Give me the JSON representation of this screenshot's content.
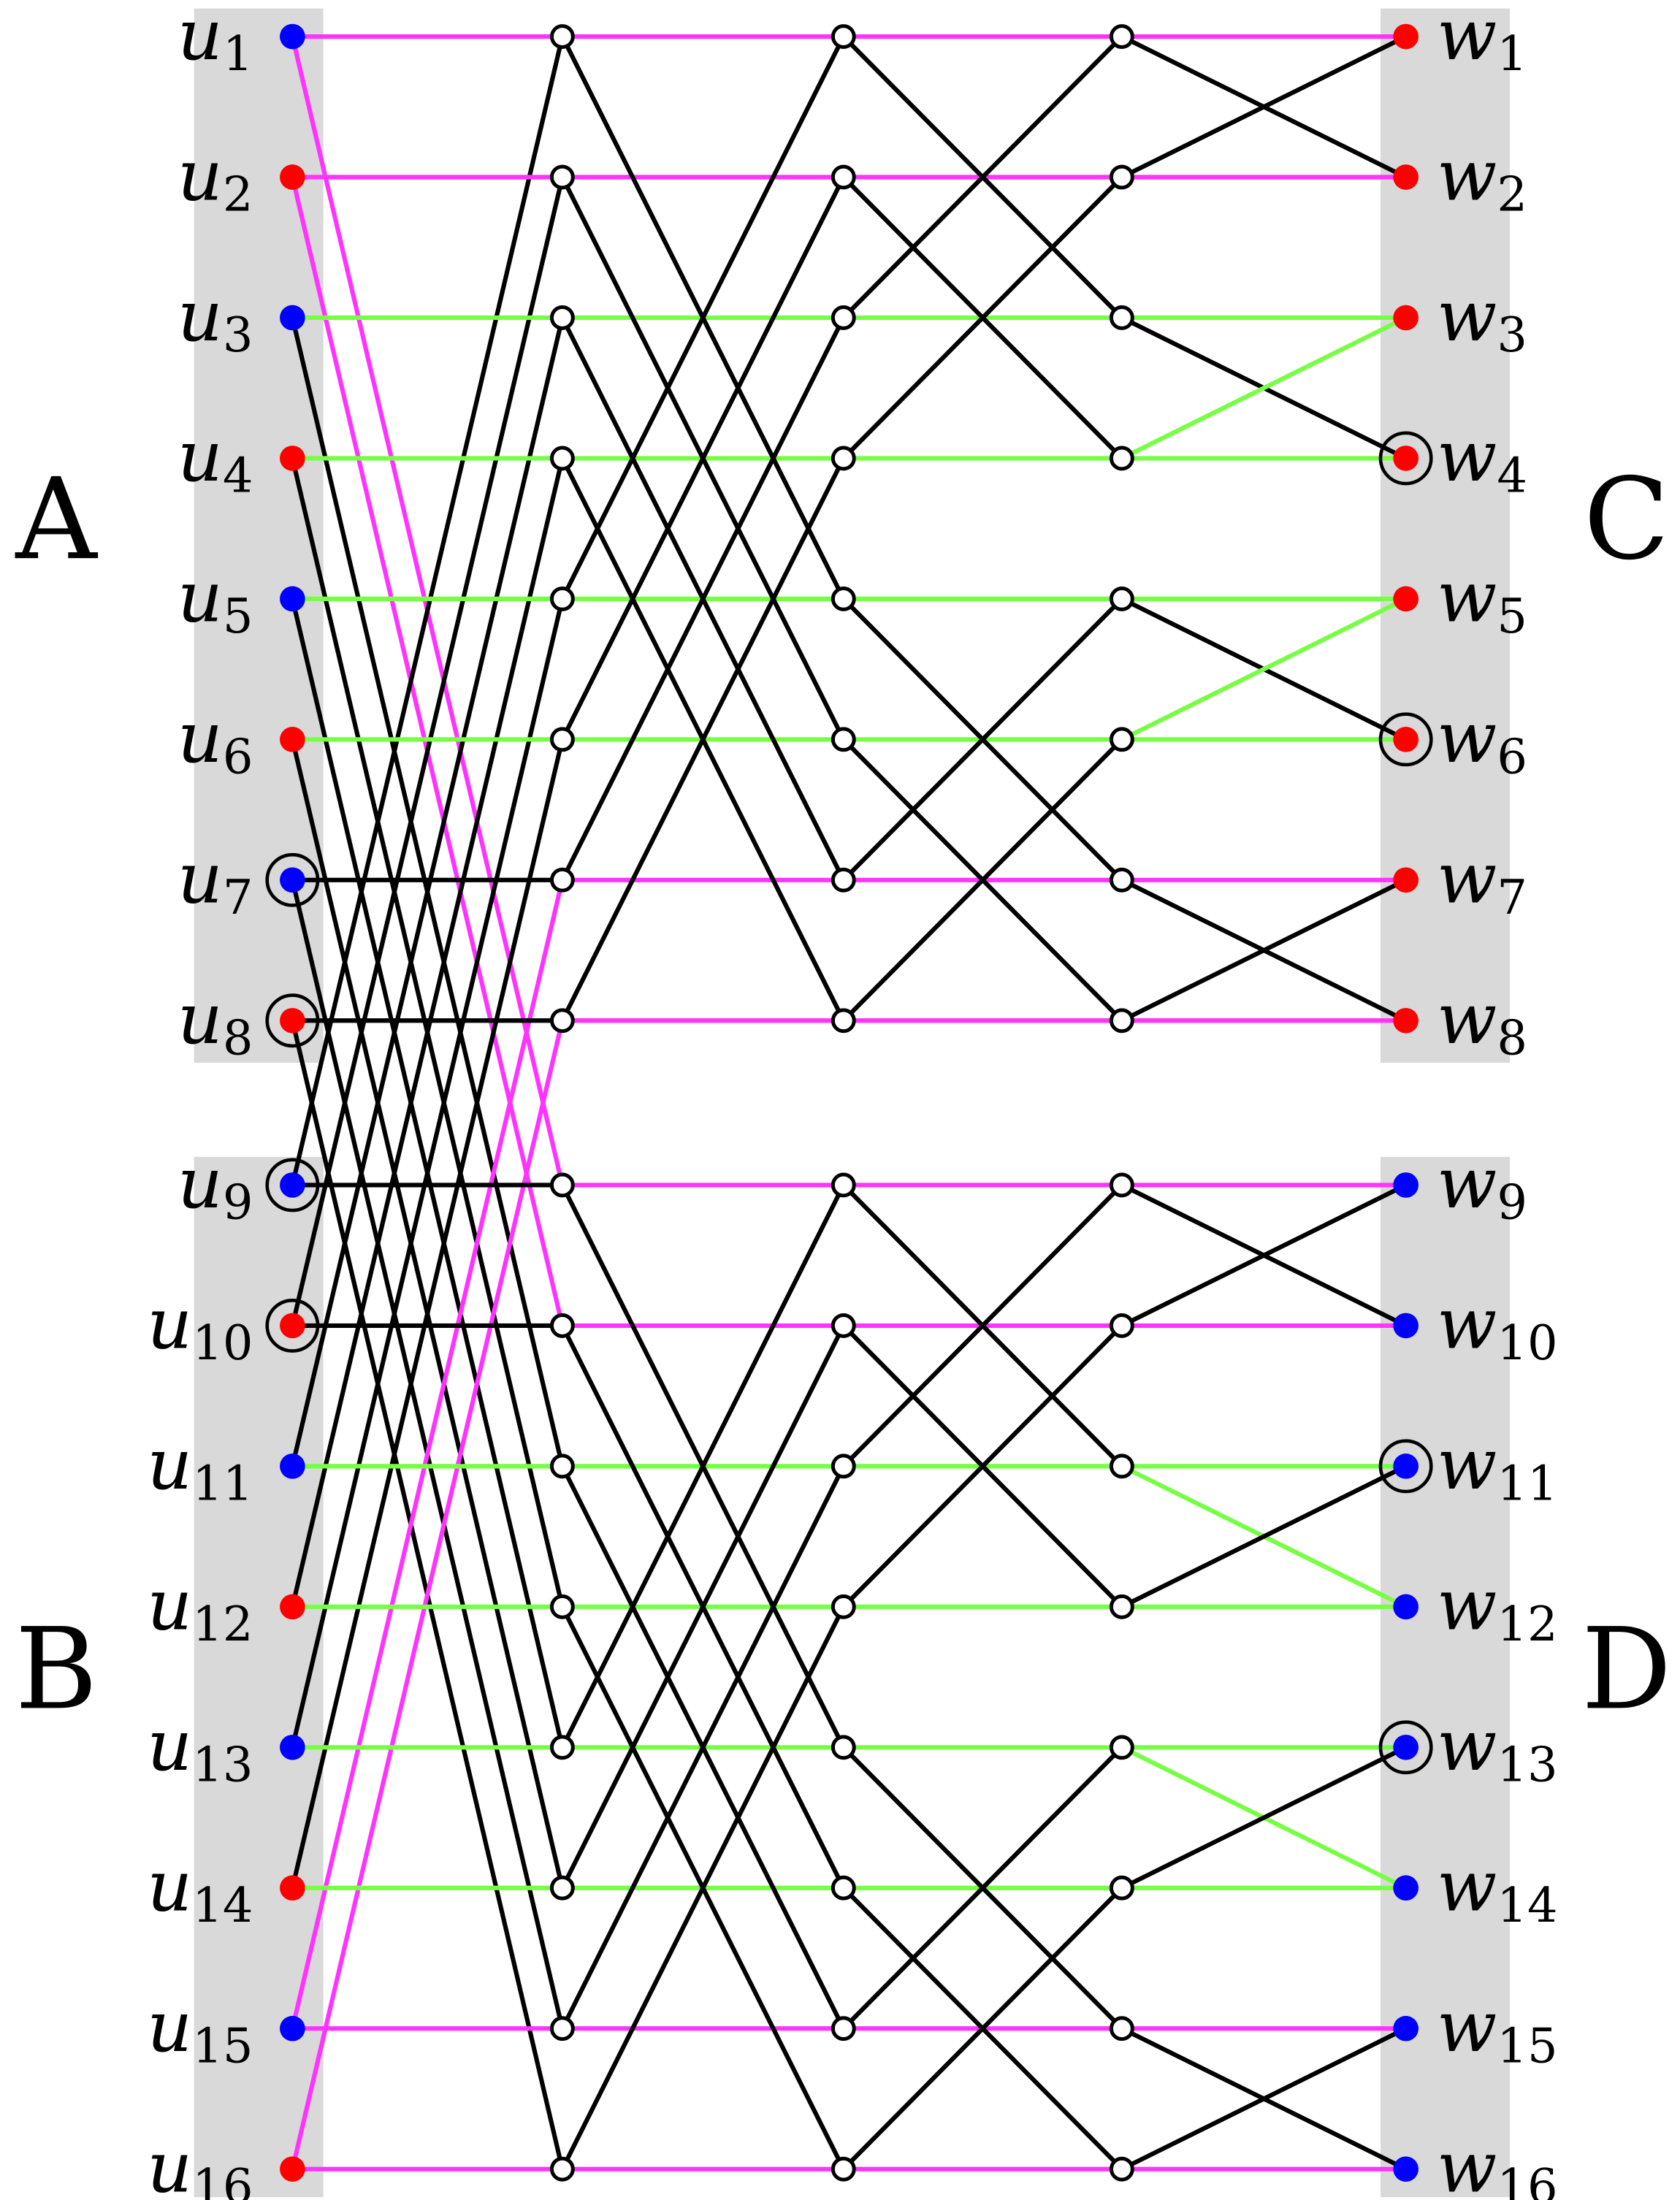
{
  "colors": {
    "panel": "#d9d9d9",
    "magenta_edge": "#ff33ff",
    "green_edge": "#77ff44",
    "black_edge": "#000000",
    "red_node": "#ff0000",
    "blue_node": "#0000ff",
    "hollow_node_fill": "#ffffff"
  },
  "groups": {
    "A": "A",
    "B": "B",
    "C": "C",
    "D": "D"
  },
  "left_nodes": [
    {
      "base": "u",
      "sub": "1",
      "color": "blue",
      "ringed": false
    },
    {
      "base": "u",
      "sub": "2",
      "color": "red",
      "ringed": false
    },
    {
      "base": "u",
      "sub": "3",
      "color": "blue",
      "ringed": false
    },
    {
      "base": "u",
      "sub": "4",
      "color": "red",
      "ringed": false
    },
    {
      "base": "u",
      "sub": "5",
      "color": "blue",
      "ringed": false
    },
    {
      "base": "u",
      "sub": "6",
      "color": "red",
      "ringed": false
    },
    {
      "base": "u",
      "sub": "7",
      "color": "blue",
      "ringed": true
    },
    {
      "base": "u",
      "sub": "8",
      "color": "red",
      "ringed": true
    },
    {
      "base": "u",
      "sub": "9",
      "color": "blue",
      "ringed": true
    },
    {
      "base": "u",
      "sub": "10",
      "color": "red",
      "ringed": true
    },
    {
      "base": "u",
      "sub": "11",
      "color": "blue",
      "ringed": false
    },
    {
      "base": "u",
      "sub": "12",
      "color": "red",
      "ringed": false
    },
    {
      "base": "u",
      "sub": "13",
      "color": "blue",
      "ringed": false
    },
    {
      "base": "u",
      "sub": "14",
      "color": "red",
      "ringed": false
    },
    {
      "base": "u",
      "sub": "15",
      "color": "blue",
      "ringed": false
    },
    {
      "base": "u",
      "sub": "16",
      "color": "red",
      "ringed": false
    }
  ],
  "right_nodes": [
    {
      "base": "w",
      "sub": "1",
      "color": "red",
      "ringed": false
    },
    {
      "base": "w",
      "sub": "2",
      "color": "red",
      "ringed": false
    },
    {
      "base": "w",
      "sub": "3",
      "color": "red",
      "ringed": false
    },
    {
      "base": "w",
      "sub": "4",
      "color": "red",
      "ringed": true
    },
    {
      "base": "w",
      "sub": "5",
      "color": "red",
      "ringed": false
    },
    {
      "base": "w",
      "sub": "6",
      "color": "red",
      "ringed": true
    },
    {
      "base": "w",
      "sub": "7",
      "color": "red",
      "ringed": false
    },
    {
      "base": "w",
      "sub": "8",
      "color": "red",
      "ringed": false
    },
    {
      "base": "w",
      "sub": "9",
      "color": "blue",
      "ringed": false
    },
    {
      "base": "w",
      "sub": "10",
      "color": "blue",
      "ringed": false
    },
    {
      "base": "w",
      "sub": "11",
      "color": "blue",
      "ringed": true
    },
    {
      "base": "w",
      "sub": "12",
      "color": "blue",
      "ringed": false
    },
    {
      "base": "w",
      "sub": "13",
      "color": "blue",
      "ringed": true
    },
    {
      "base": "w",
      "sub": "14",
      "color": "blue",
      "ringed": false
    },
    {
      "base": "w",
      "sub": "15",
      "color": "blue",
      "ringed": false
    },
    {
      "base": "w",
      "sub": "16",
      "color": "blue",
      "ringed": false
    }
  ]
}
